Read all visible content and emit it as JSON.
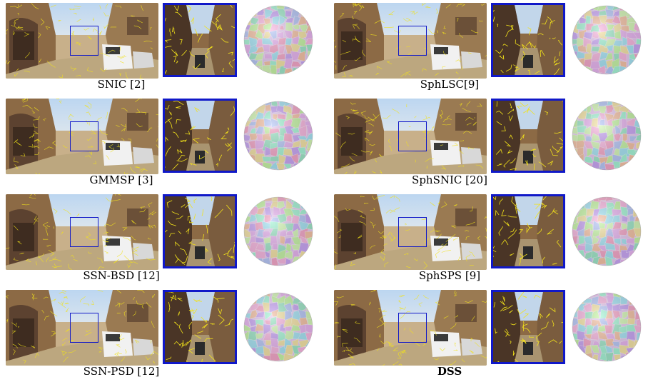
{
  "figure": {
    "panels": [
      {
        "label": "SNIC [2]",
        "bold": false
      },
      {
        "label": "SphLSC[9]",
        "bold": false
      },
      {
        "label": "GMMSP [3]",
        "bold": false
      },
      {
        "label": "SphSNIC [20]",
        "bold": false
      },
      {
        "label": "SSN-BSD [12]",
        "bold": false
      },
      {
        "label": "SphSPS [9]",
        "bold": false
      },
      {
        "label": "SSN-PSD [12]",
        "bold": false
      },
      {
        "label": "DSS",
        "bold": true
      }
    ],
    "colors": {
      "roi_box": "#1018c8",
      "contour": "#f2e21a",
      "sky": "#a9c6e6",
      "buildings": "#8a6a46"
    }
  }
}
